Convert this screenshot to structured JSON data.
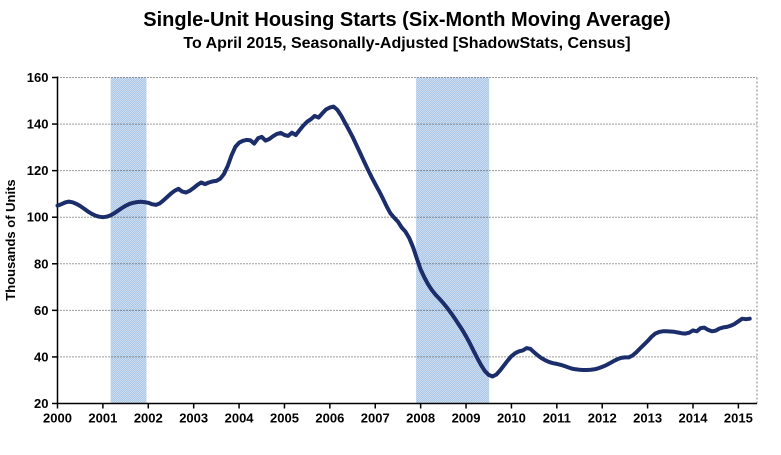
{
  "chart_data": {
    "type": "line",
    "title": "Single-Unit Housing Starts (Six-Month Moving Average)",
    "subtitle": "To April 2015, Seasonally-Adjusted [ShadowStats, Census]",
    "ylabel": "Thousands of Units",
    "xlabel": "",
    "ylim": [
      20,
      160
    ],
    "xlim": [
      2000,
      2015.41
    ],
    "y_ticks": [
      20,
      40,
      60,
      80,
      100,
      120,
      140,
      160
    ],
    "x_ticks": [
      2000,
      2001,
      2002,
      2003,
      2004,
      2005,
      2006,
      2007,
      2008,
      2009,
      2010,
      2011,
      2012,
      2013,
      2014,
      2015
    ],
    "grid": "horizontal-dotted",
    "legend": "none",
    "frequency": "monthly",
    "x_start": "2000-01",
    "x_end": "2015-04",
    "recession_bands": [
      {
        "start": 2001.17,
        "end": 2001.96
      },
      {
        "start": 2007.9,
        "end": 2009.51
      }
    ],
    "series": [
      {
        "name": "Single-unit housing starts, six-month moving average (thousands of units)",
        "values": [
          105.0,
          105.6,
          106.3,
          106.7,
          106.4,
          105.7,
          104.8,
          103.7,
          102.5,
          101.5,
          100.7,
          100.2,
          100.0,
          100.2,
          100.8,
          101.7,
          102.8,
          103.9,
          104.9,
          105.7,
          106.2,
          106.5,
          106.6,
          106.5,
          106.2,
          105.6,
          105.3,
          105.9,
          107.2,
          108.7,
          110.2,
          111.4,
          112.2,
          111.0,
          110.6,
          111.4,
          112.6,
          113.9,
          114.9,
          114.2,
          114.9,
          115.4,
          115.6,
          116.5,
          118.5,
          122.0,
          126.5,
          130.2,
          132.0,
          132.8,
          133.2,
          133.0,
          131.6,
          133.9,
          134.5,
          132.9,
          133.6,
          134.8,
          135.8,
          136.2,
          135.3,
          134.9,
          136.3,
          135.3,
          137.4,
          139.4,
          141.0,
          142.1,
          143.5,
          142.8,
          144.6,
          146.3,
          147.1,
          147.5,
          146.1,
          143.6,
          140.6,
          137.6,
          134.5,
          131.1,
          127.6,
          124.1,
          120.6,
          117.3,
          114.3,
          111.3,
          108.1,
          104.7,
          101.7,
          99.8,
          98.1,
          95.6,
          93.8,
          91.0,
          87.1,
          82.2,
          77.6,
          74.1,
          71.1,
          68.6,
          66.6,
          64.9,
          63.1,
          61.1,
          58.9,
          56.6,
          54.1,
          51.6,
          48.9,
          45.9,
          42.6,
          39.4,
          36.4,
          33.9,
          32.3,
          31.6,
          32.4,
          34.2,
          36.3,
          38.4,
          40.3,
          41.6,
          42.4,
          42.8,
          43.8,
          43.5,
          42.0,
          40.6,
          39.4,
          38.5,
          37.8,
          37.3,
          37.0,
          36.6,
          36.1,
          35.5,
          35.0,
          34.7,
          34.5,
          34.4,
          34.4,
          34.5,
          34.7,
          35.1,
          35.7,
          36.4,
          37.3,
          38.2,
          39.0,
          39.6,
          39.8,
          39.8,
          40.6,
          42.0,
          43.6,
          45.2,
          46.8,
          48.6,
          50.0,
          50.7,
          51.0,
          51.0,
          50.9,
          50.8,
          50.5,
          50.2,
          50.0,
          50.4,
          51.4,
          51.0,
          52.4,
          52.6,
          51.6,
          51.0,
          51.3,
          52.2,
          52.7,
          52.9,
          53.4,
          54.2,
          55.3,
          56.4,
          56.2,
          56.4
        ]
      }
    ],
    "colors": {
      "line": "#1b2d6b",
      "recession_band": "#b8cfe9",
      "recession_band_light": "#cbdcf1",
      "recession_band_dark": "#adc8e6",
      "grid": "#3a3a3a",
      "frame": "#999999",
      "axis": "#000000",
      "text": "#000000",
      "background": "#ffffff"
    }
  }
}
